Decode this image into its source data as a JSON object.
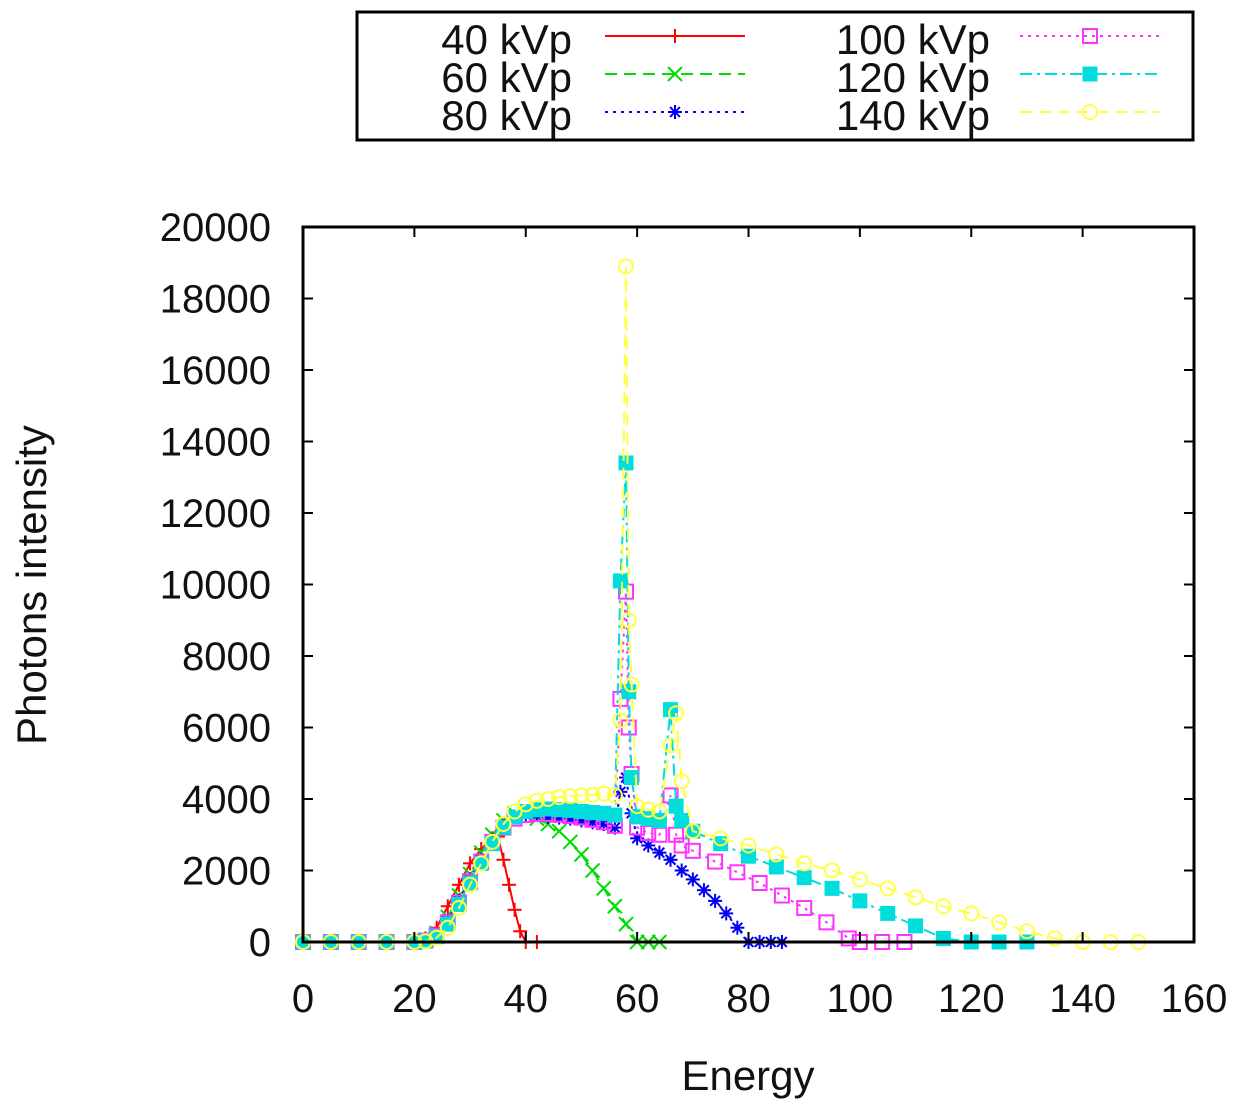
{
  "chart_data": {
    "type": "line",
    "title": "",
    "xlabel": "Energy",
    "ylabel": "Photons intensity",
    "xlim": [
      0,
      160
    ],
    "ylim": [
      0,
      20000
    ],
    "x_ticks": [
      "0",
      "20",
      "40",
      "60",
      "80",
      "100",
      "120",
      "140",
      "160"
    ],
    "y_ticks": [
      "0",
      "2000",
      "4000",
      "6000",
      "8000",
      "10000",
      "12000",
      "14000",
      "16000",
      "18000",
      "20000"
    ],
    "grid": false,
    "legend_position": "top",
    "series": [
      {
        "name": "40 kVp",
        "color": "#ff0000",
        "marker": "plus",
        "dash": "solid",
        "x": [
          0,
          5,
          10,
          15,
          20,
          22,
          24,
          26,
          28,
          30,
          32,
          34,
          35,
          36,
          37,
          38,
          39,
          40,
          42
        ],
        "y": [
          0,
          0,
          0,
          0,
          0,
          100,
          400,
          1000,
          1600,
          2200,
          2600,
          2900,
          2950,
          2300,
          1600,
          900,
          300,
          0,
          0
        ]
      },
      {
        "name": "60 kVp",
        "color": "#00dd00",
        "marker": "x",
        "dash": "dashed",
        "x": [
          0,
          5,
          10,
          15,
          20,
          22,
          24,
          26,
          28,
          30,
          32,
          34,
          36,
          38,
          40,
          42,
          44,
          46,
          48,
          50,
          52,
          54,
          56,
          58,
          60,
          62,
          64
        ],
        "y": [
          0,
          0,
          0,
          0,
          0,
          60,
          250,
          700,
          1300,
          1900,
          2500,
          3000,
          3400,
          3600,
          3550,
          3450,
          3300,
          3100,
          2800,
          2450,
          2000,
          1500,
          1000,
          500,
          0,
          0,
          0
        ]
      },
      {
        "name": "80 kVp",
        "color": "#0000ee",
        "marker": "star",
        "dash": "dotted",
        "x": [
          0,
          5,
          10,
          15,
          20,
          22,
          24,
          26,
          28,
          30,
          32,
          34,
          36,
          38,
          40,
          42,
          44,
          46,
          48,
          50,
          52,
          54,
          56,
          57,
          58,
          59,
          60,
          62,
          64,
          66,
          68,
          70,
          72,
          74,
          76,
          78,
          80,
          82,
          84,
          86
        ],
        "y": [
          0,
          0,
          0,
          0,
          0,
          50,
          200,
          600,
          1150,
          1750,
          2300,
          2850,
          3250,
          3500,
          3550,
          3550,
          3500,
          3480,
          3450,
          3400,
          3350,
          3300,
          3200,
          4200,
          4600,
          3600,
          2900,
          2700,
          2500,
          2300,
          2000,
          1750,
          1450,
          1150,
          800,
          400,
          0,
          0,
          0,
          0
        ]
      },
      {
        "name": "100 kVp",
        "color": "#ff33ff",
        "marker": "square-open",
        "dash": "dotted",
        "x": [
          0,
          5,
          10,
          15,
          20,
          22,
          24,
          26,
          28,
          30,
          32,
          34,
          36,
          38,
          40,
          42,
          44,
          46,
          48,
          50,
          52,
          54,
          56,
          57,
          58,
          58.5,
          59,
          60,
          62,
          64,
          66,
          67,
          68,
          70,
          74,
          78,
          82,
          86,
          90,
          94,
          98,
          100,
          104,
          108
        ],
        "y": [
          0,
          0,
          0,
          0,
          0,
          40,
          180,
          550,
          1100,
          1700,
          2250,
          2800,
          3200,
          3450,
          3550,
          3580,
          3580,
          3560,
          3520,
          3480,
          3420,
          3350,
          3250,
          6800,
          9800,
          6000,
          4700,
          3200,
          3050,
          3000,
          4100,
          3000,
          2700,
          2550,
          2250,
          1950,
          1650,
          1300,
          950,
          550,
          100,
          0,
          0,
          0
        ]
      },
      {
        "name": "120 kVp",
        "color": "#00dddd",
        "marker": "square-filled",
        "dash": "dashdot",
        "x": [
          0,
          5,
          10,
          15,
          20,
          22,
          24,
          26,
          28,
          30,
          32,
          34,
          36,
          38,
          40,
          42,
          44,
          46,
          48,
          50,
          52,
          54,
          56,
          57,
          58,
          58.5,
          59,
          60,
          62,
          64,
          66,
          67,
          68,
          70,
          75,
          80,
          85,
          90,
          95,
          100,
          105,
          110,
          115,
          120,
          125,
          130
        ],
        "y": [
          0,
          0,
          0,
          0,
          0,
          30,
          150,
          500,
          1050,
          1650,
          2200,
          2750,
          3200,
          3500,
          3650,
          3700,
          3720,
          3700,
          3680,
          3650,
          3620,
          3600,
          3550,
          10100,
          13400,
          7000,
          4600,
          3500,
          3450,
          3400,
          6500,
          3800,
          3400,
          3100,
          2750,
          2400,
          2100,
          1800,
          1500,
          1150,
          800,
          450,
          100,
          0,
          0,
          0
        ]
      },
      {
        "name": "140 kVp",
        "color": "#ffff44",
        "marker": "circle-open",
        "dash": "dashed",
        "x": [
          0,
          5,
          10,
          15,
          20,
          22,
          24,
          26,
          28,
          30,
          32,
          34,
          36,
          38,
          40,
          42,
          44,
          46,
          48,
          50,
          52,
          54,
          56,
          57,
          58,
          58.5,
          59,
          60,
          62,
          64,
          66,
          67,
          68,
          70,
          75,
          80,
          85,
          90,
          95,
          100,
          105,
          110,
          115,
          120,
          125,
          130,
          135,
          140,
          145,
          150
        ],
        "y": [
          0,
          0,
          0,
          0,
          0,
          20,
          120,
          400,
          950,
          1600,
          2200,
          2800,
          3300,
          3650,
          3850,
          3950,
          4000,
          4050,
          4080,
          4100,
          4120,
          4150,
          4100,
          6200,
          18900,
          9000,
          7200,
          3800,
          3700,
          3650,
          5500,
          6400,
          4500,
          3100,
          2900,
          2700,
          2450,
          2200,
          2000,
          1750,
          1500,
          1250,
          1000,
          800,
          550,
          300,
          100,
          0,
          0,
          0
        ]
      }
    ]
  }
}
